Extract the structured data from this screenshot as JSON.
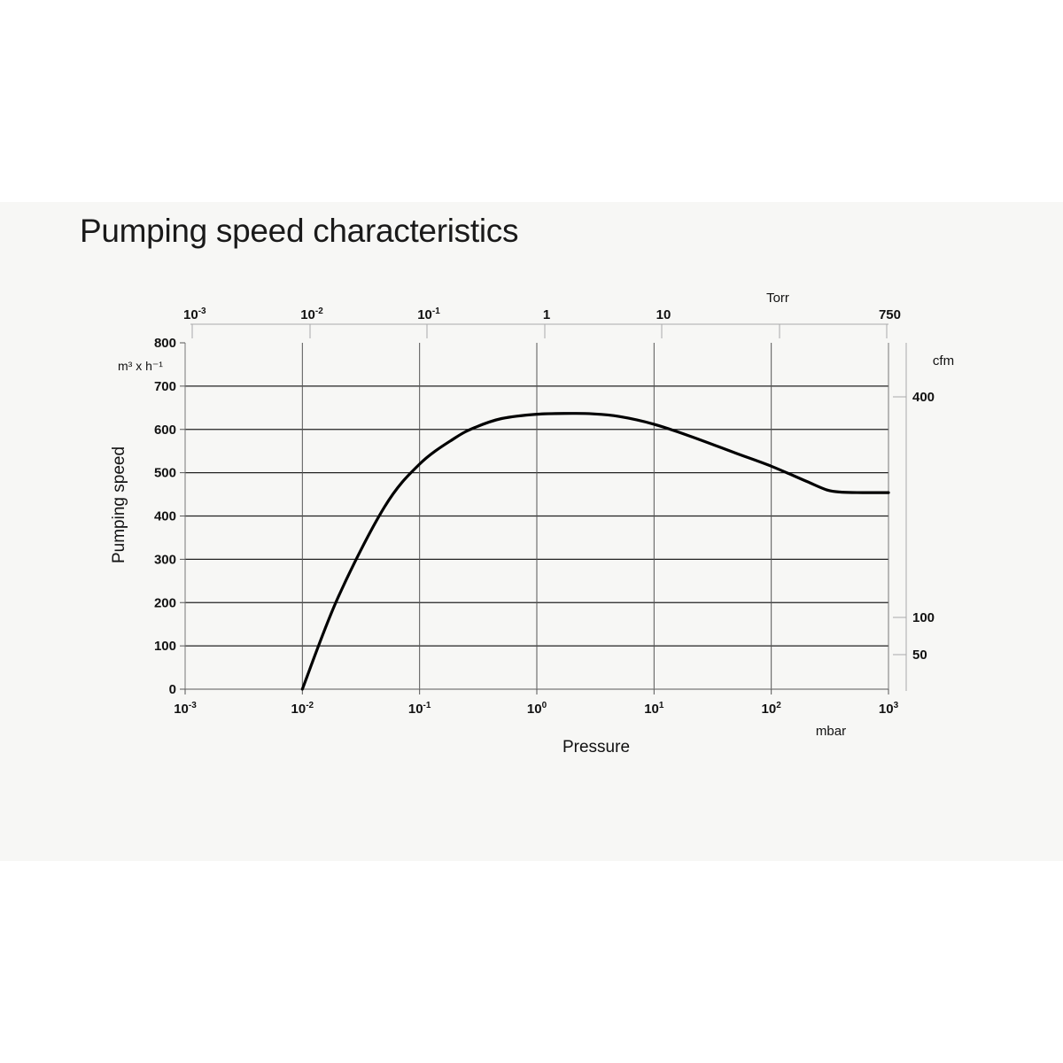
{
  "chart_data": {
    "type": "line",
    "title": "Pumping speed characteristics",
    "xscale": "log",
    "xlim": [
      0.001,
      1000
    ],
    "ylim": [
      0,
      800
    ],
    "xlabel": "Pressure",
    "xunit": "mbar",
    "ylabel": "Pumping speed",
    "yunit": "m³ x h⁻¹",
    "x_ticks": [
      {
        "base": "10",
        "exp": "-3",
        "value": 0.001
      },
      {
        "base": "10",
        "exp": "-2",
        "value": 0.01
      },
      {
        "base": "10",
        "exp": "-1",
        "value": 0.1
      },
      {
        "base": "10",
        "exp": "0",
        "value": 1
      },
      {
        "base": "10",
        "exp": "1",
        "value": 10
      },
      {
        "base": "10",
        "exp": "2",
        "value": 100
      },
      {
        "base": "10",
        "exp": "3",
        "value": 1000
      }
    ],
    "y_ticks": [
      0,
      100,
      200,
      300,
      400,
      500,
      600,
      700,
      800
    ],
    "top_axis": {
      "unit": "Torr",
      "ticks": [
        {
          "base": "10",
          "exp": "-3",
          "value": 0.001
        },
        {
          "base": "10",
          "exp": "-2",
          "value": 0.01
        },
        {
          "base": "10",
          "exp": "-1",
          "value": 0.1
        },
        {
          "base": "1",
          "exp": "",
          "value": 1
        },
        {
          "base": "10",
          "exp": "",
          "value": 10
        },
        {
          "base": "",
          "exp": "",
          "value": 100
        },
        {
          "base": "750",
          "exp": "",
          "value": 750
        }
      ]
    },
    "right_axis": {
      "unit": "cfm",
      "ticks": [
        {
          "label": "400",
          "value": 400
        },
        {
          "label": "100",
          "value": 100
        },
        {
          "label": "50",
          "value": 50
        }
      ]
    },
    "grid": true,
    "series": [
      {
        "x": [
          0.01,
          0.02,
          0.05,
          0.1,
          0.2,
          0.3,
          0.5,
          1,
          2,
          3,
          5,
          10,
          20,
          50,
          100,
          200,
          300,
          400,
          600,
          1000
        ],
        "y": [
          0,
          210,
          420,
          520,
          580,
          605,
          625,
          635,
          637,
          636,
          630,
          612,
          585,
          545,
          515,
          480,
          460,
          455,
          454,
          454
        ]
      }
    ]
  }
}
